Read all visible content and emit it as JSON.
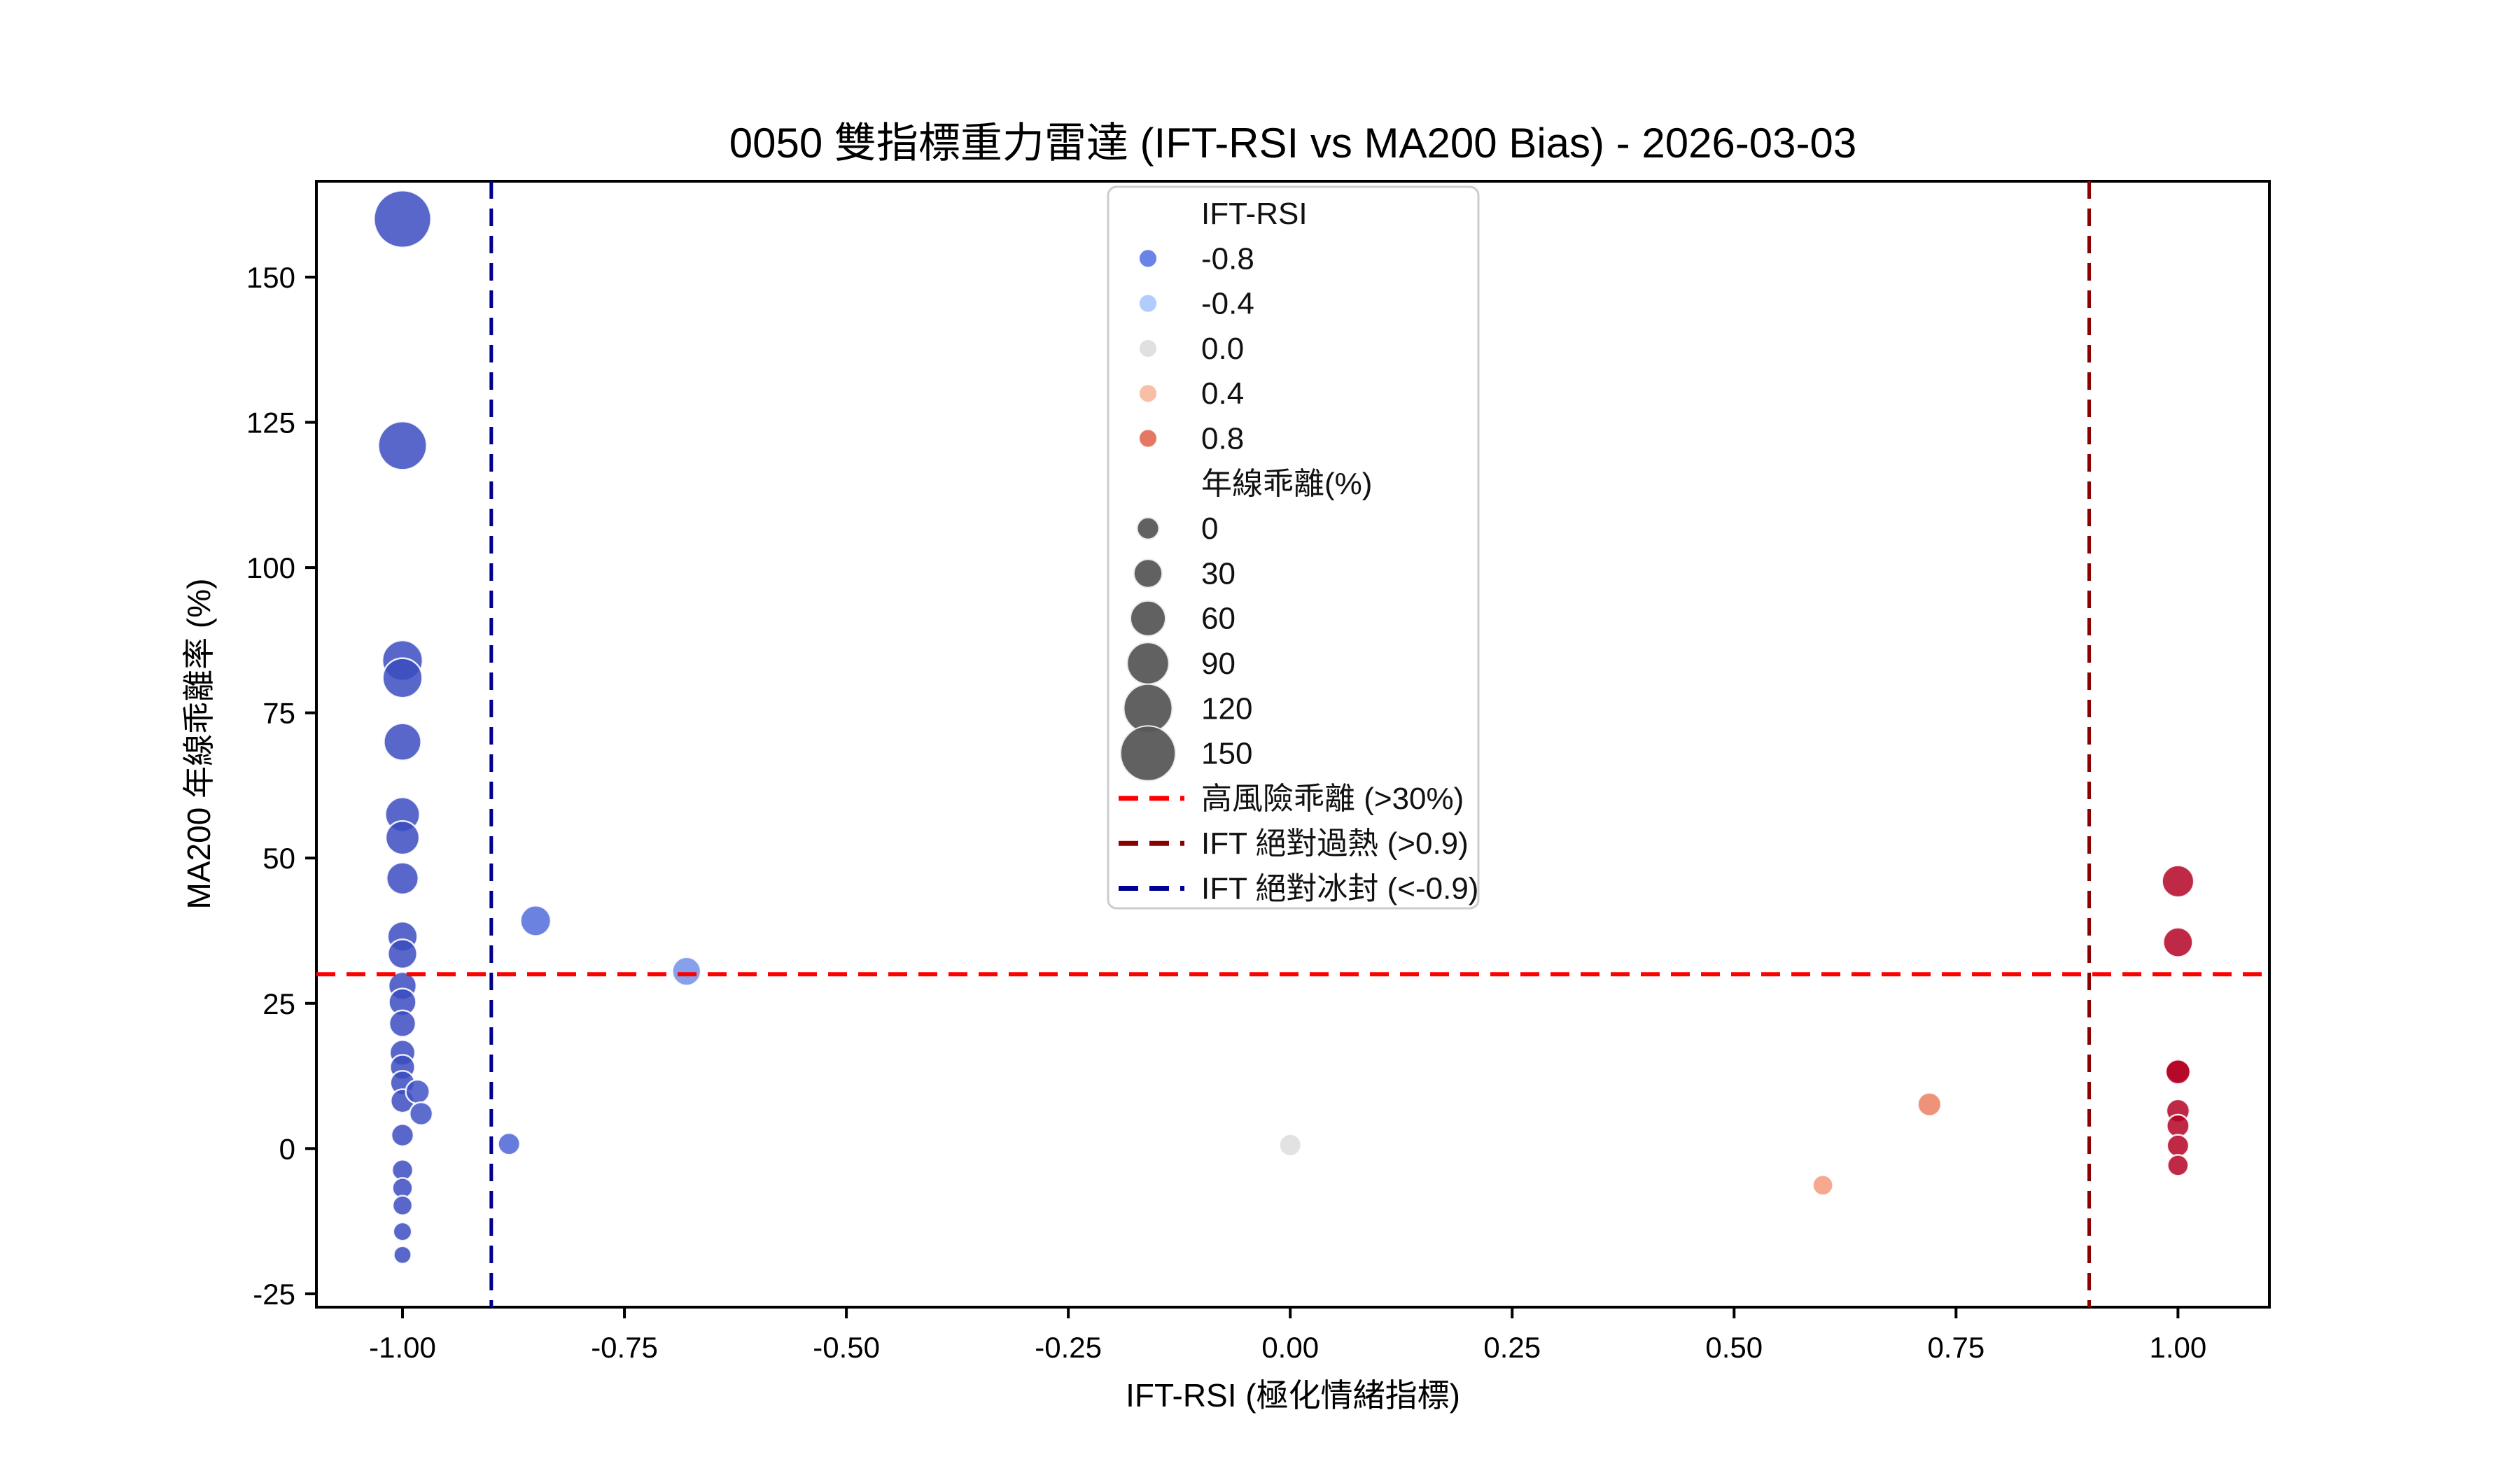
{
  "chart_data": {
    "type": "scatter",
    "title": "0050 雙指標重力雷達 (IFT-RSI vs MA200 Bias) - 2026-03-03",
    "xlabel": "IFT-RSI (極化情緒指標)",
    "ylabel": "MA200 年線乖離率 (%)",
    "xlim": [
      -1.097,
      1.103
    ],
    "ylim": [
      -27.3,
      166.5
    ],
    "grid": false,
    "legend_position": "upper-center-right",
    "x_ticks": [
      -1.0,
      -0.75,
      -0.5,
      -0.25,
      0.0,
      0.25,
      0.5,
      0.75,
      1.0
    ],
    "x_tick_labels": [
      "-1.00",
      "-0.75",
      "-0.50",
      "-0.25",
      "0.00",
      "0.25",
      "0.50",
      "0.75",
      "1.00"
    ],
    "y_ticks": [
      -25,
      0,
      25,
      50,
      75,
      100,
      125,
      150
    ],
    "y_tick_labels": [
      "-25",
      "0",
      "25",
      "50",
      "75",
      "100",
      "125",
      "150"
    ],
    "encoding": {
      "color": "IFT-RSI (coolwarm)",
      "size": "年線乖離(%)"
    },
    "points": [
      {
        "x": -1.0,
        "y": 160.0,
        "ift": -1.0,
        "color": "#3b4cc0"
      },
      {
        "x": -1.0,
        "y": 121.0,
        "ift": -1.0,
        "color": "#3b4cc0"
      },
      {
        "x": -1.0,
        "y": 84.0,
        "ift": -1.0,
        "color": "#3b4cc0"
      },
      {
        "x": -1.0,
        "y": 81.0,
        "ift": -1.0,
        "color": "#3b4cc0"
      },
      {
        "x": -1.0,
        "y": 70.0,
        "ift": -1.0,
        "color": "#3b4cc0"
      },
      {
        "x": -1.0,
        "y": 57.5,
        "ift": -1.0,
        "color": "#3b4cc0"
      },
      {
        "x": -1.0,
        "y": 53.5,
        "ift": -1.0,
        "color": "#3b4cc0"
      },
      {
        "x": -1.0,
        "y": 46.5,
        "ift": -1.0,
        "color": "#3b4cc0"
      },
      {
        "x": -1.0,
        "y": 36.5,
        "ift": -1.0,
        "color": "#3b4cc0"
      },
      {
        "x": -1.0,
        "y": 33.5,
        "ift": -1.0,
        "color": "#3b4cc0"
      },
      {
        "x": -1.0,
        "y": 28.0,
        "ift": -1.0,
        "color": "#3b4cc0"
      },
      {
        "x": -1.0,
        "y": 25.2,
        "ift": -1.0,
        "color": "#3b4cc0"
      },
      {
        "x": -1.0,
        "y": 21.5,
        "ift": -1.0,
        "color": "#3b4cc0"
      },
      {
        "x": -1.0,
        "y": 16.5,
        "ift": -1.0,
        "color": "#3b4cc0"
      },
      {
        "x": -1.0,
        "y": 14.0,
        "ift": -1.0,
        "color": "#3b4cc0"
      },
      {
        "x": -1.0,
        "y": 11.3,
        "ift": -1.0,
        "color": "#3b4cc0"
      },
      {
        "x": -1.0,
        "y": 8.2,
        "ift": -1.0,
        "color": "#3b4cc0"
      },
      {
        "x": -1.0,
        "y": 2.3,
        "ift": -1.0,
        "color": "#3b4cc0"
      },
      {
        "x": -1.0,
        "y": -3.7,
        "ift": -1.0,
        "color": "#3b4cc0"
      },
      {
        "x": -1.0,
        "y": -6.8,
        "ift": -1.0,
        "color": "#3b4cc0"
      },
      {
        "x": -1.0,
        "y": -9.8,
        "ift": -1.0,
        "color": "#3b4cc0"
      },
      {
        "x": -1.0,
        "y": -14.3,
        "ift": -1.0,
        "color": "#3b4cc0"
      },
      {
        "x": -1.0,
        "y": -18.3,
        "ift": -1.0,
        "color": "#3b4cc0"
      },
      {
        "x": -0.983,
        "y": 9.8,
        "ift": -0.98,
        "color": "#3f53c6"
      },
      {
        "x": -0.979,
        "y": 6.0,
        "ift": -0.98,
        "color": "#3f53c6"
      },
      {
        "x": -0.88,
        "y": 0.8,
        "ift": -0.88,
        "color": "#4b64d5"
      },
      {
        "x": -0.85,
        "y": 39.2,
        "ift": -0.85,
        "color": "#516cda"
      },
      {
        "x": -0.68,
        "y": 30.5,
        "ift": -0.68,
        "color": "#718fe8"
      },
      {
        "x": 0.0,
        "y": 0.6,
        "ift": 0.0,
        "color": "#dddddd"
      },
      {
        "x": 0.6,
        "y": -6.3,
        "ift": 0.6,
        "color": "#f49a7b"
      },
      {
        "x": 0.72,
        "y": 7.6,
        "ift": 0.72,
        "color": "#eb7f62"
      },
      {
        "x": 1.0,
        "y": 46.0,
        "ift": 1.0,
        "color": "#b40426"
      },
      {
        "x": 1.0,
        "y": 35.5,
        "ift": 1.0,
        "color": "#b40426"
      },
      {
        "x": 1.0,
        "y": 13.4,
        "ift": 1.0,
        "color": "#b40426"
      },
      {
        "x": 1.0,
        "y": 13.2,
        "ift": 1.0,
        "color": "#b40426"
      },
      {
        "x": 1.0,
        "y": 6.5,
        "ift": 1.0,
        "color": "#b40426"
      },
      {
        "x": 1.0,
        "y": 3.9,
        "ift": 1.0,
        "color": "#b40426"
      },
      {
        "x": 1.0,
        "y": 0.5,
        "ift": 1.0,
        "color": "#b40426"
      },
      {
        "x": 1.0,
        "y": -2.9,
        "ift": 1.0,
        "color": "#b40426"
      }
    ],
    "thresholds": [
      {
        "label": "高風險乖離 (>30%)",
        "axis": "y",
        "value": 30.0,
        "color": "#ff0000"
      },
      {
        "label": "IFT 絕對過熱 (>0.9)",
        "axis": "x",
        "value": 0.9,
        "color": "#8b0000"
      },
      {
        "label": "IFT 絕對冰封 (<-0.9)",
        "axis": "x",
        "value": -0.9,
        "color": "#000090"
      }
    ]
  },
  "legend": {
    "color_title": "IFT-RSI",
    "color_items": [
      {
        "label": "-0.8",
        "color": "#5977e3"
      },
      {
        "label": "-0.4",
        "color": "#aac7fd"
      },
      {
        "label": "0.0",
        "color": "#dddddd"
      },
      {
        "label": "0.4",
        "color": "#f7b89c"
      },
      {
        "label": "0.8",
        "color": "#e26952"
      }
    ],
    "size_title": "年線乖離(%)",
    "size_items": [
      {
        "label": "0",
        "value": 0
      },
      {
        "label": "30",
        "value": 30
      },
      {
        "label": "60",
        "value": 60
      },
      {
        "label": "90",
        "value": 90
      },
      {
        "label": "120",
        "value": 120
      },
      {
        "label": "150",
        "value": 150
      }
    ],
    "line_items": [
      {
        "label": "高風險乖離 (>30%)",
        "color": "#ff0000"
      },
      {
        "label": "IFT 絕對過熱 (>0.9)",
        "color": "#8b0000"
      },
      {
        "label": "IFT 絕對冰封 (<-0.9)",
        "color": "#000090"
      }
    ]
  }
}
